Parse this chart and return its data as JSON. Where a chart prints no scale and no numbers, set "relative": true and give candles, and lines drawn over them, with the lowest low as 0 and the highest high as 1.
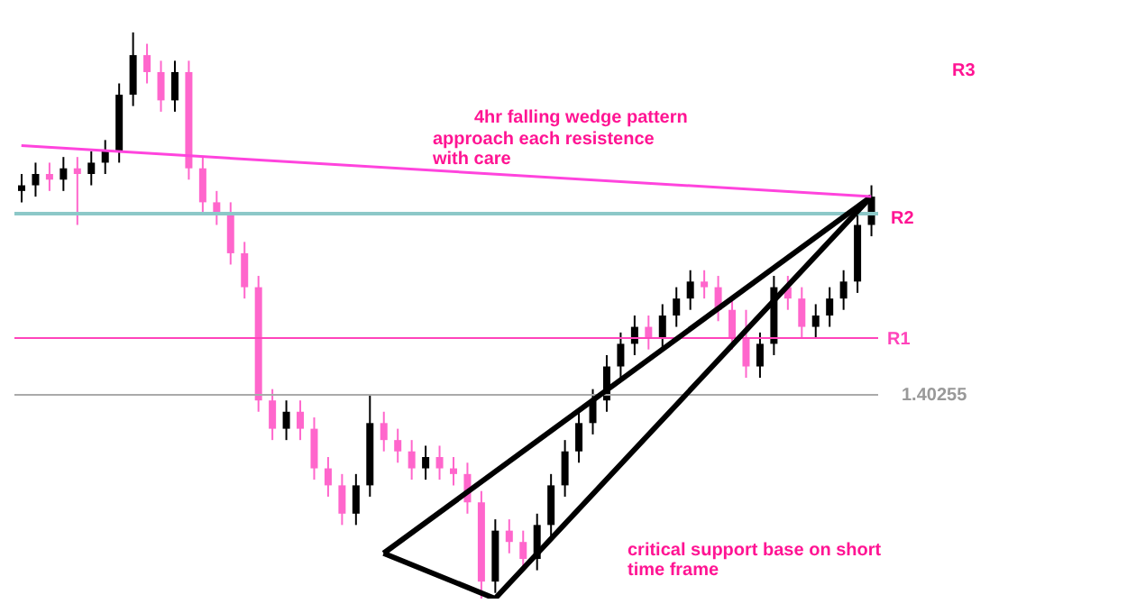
{
  "chart_data": {
    "type": "candlestick",
    "relative": true,
    "categories": [
      null,
      null,
      null,
      null,
      null,
      null,
      null,
      null,
      null,
      null,
      null,
      null,
      null,
      null,
      null,
      null,
      null,
      null,
      null,
      null,
      null,
      null,
      null,
      null,
      null,
      null,
      null,
      null,
      null,
      null,
      null,
      null,
      null,
      null,
      null,
      null,
      null,
      null,
      null,
      null,
      null,
      null,
      null,
      null,
      null,
      null,
      null,
      null,
      null,
      null,
      null,
      null,
      null,
      null,
      null,
      null,
      null,
      null,
      null,
      null,
      null,
      null
    ],
    "ohlc": [
      [
        0.72,
        0.75,
        0.7,
        0.73
      ],
      [
        0.73,
        0.77,
        0.71,
        0.75
      ],
      [
        0.75,
        0.77,
        0.72,
        0.74
      ],
      [
        0.74,
        0.78,
        0.72,
        0.76
      ],
      [
        0.76,
        0.78,
        0.66,
        0.75
      ],
      [
        0.75,
        0.79,
        0.73,
        0.77
      ],
      [
        0.77,
        0.81,
        0.75,
        0.79
      ],
      [
        0.79,
        0.91,
        0.77,
        0.89
      ],
      [
        0.89,
        1.0,
        0.87,
        0.96
      ],
      [
        0.96,
        0.98,
        0.91,
        0.93
      ],
      [
        0.93,
        0.95,
        0.86,
        0.88
      ],
      [
        0.88,
        0.95,
        0.86,
        0.93
      ],
      [
        0.93,
        0.95,
        0.74,
        0.76
      ],
      [
        0.76,
        0.78,
        0.68,
        0.7
      ],
      [
        0.7,
        0.72,
        0.66,
        0.68
      ],
      [
        0.68,
        0.7,
        0.59,
        0.61
      ],
      [
        0.61,
        0.63,
        0.53,
        0.55
      ],
      [
        0.55,
        0.57,
        0.33,
        0.35
      ],
      [
        0.35,
        0.37,
        0.28,
        0.3
      ],
      [
        0.3,
        0.35,
        0.28,
        0.33
      ],
      [
        0.33,
        0.35,
        0.28,
        0.3
      ],
      [
        0.3,
        0.32,
        0.21,
        0.23
      ],
      [
        0.23,
        0.25,
        0.18,
        0.2
      ],
      [
        0.2,
        0.22,
        0.13,
        0.15
      ],
      [
        0.15,
        0.22,
        0.13,
        0.2
      ],
      [
        0.2,
        0.36,
        0.18,
        0.31
      ],
      [
        0.31,
        0.33,
        0.26,
        0.28
      ],
      [
        0.28,
        0.3,
        0.24,
        0.26
      ],
      [
        0.26,
        0.28,
        0.21,
        0.23
      ],
      [
        0.23,
        0.27,
        0.21,
        0.25
      ],
      [
        0.25,
        0.27,
        0.21,
        0.23
      ],
      [
        0.23,
        0.25,
        0.2,
        0.22
      ],
      [
        0.22,
        0.24,
        0.15,
        0.17
      ],
      [
        0.17,
        0.19,
        0.0,
        0.03
      ],
      [
        0.03,
        0.14,
        0.01,
        0.12
      ],
      [
        0.12,
        0.14,
        0.08,
        0.1
      ],
      [
        0.1,
        0.12,
        0.05,
        0.07
      ],
      [
        0.07,
        0.15,
        0.05,
        0.13
      ],
      [
        0.13,
        0.22,
        0.11,
        0.2
      ],
      [
        0.2,
        0.28,
        0.18,
        0.26
      ],
      [
        0.26,
        0.33,
        0.24,
        0.31
      ],
      [
        0.31,
        0.37,
        0.29,
        0.35
      ],
      [
        0.35,
        0.43,
        0.33,
        0.41
      ],
      [
        0.41,
        0.47,
        0.39,
        0.45
      ],
      [
        0.45,
        0.5,
        0.43,
        0.48
      ],
      [
        0.48,
        0.5,
        0.44,
        0.46
      ],
      [
        0.46,
        0.52,
        0.44,
        0.5
      ],
      [
        0.5,
        0.55,
        0.48,
        0.53
      ],
      [
        0.53,
        0.58,
        0.51,
        0.56
      ],
      [
        0.56,
        0.58,
        0.53,
        0.55
      ],
      [
        0.55,
        0.57,
        0.49,
        0.51
      ],
      [
        0.51,
        0.53,
        0.44,
        0.46
      ],
      [
        0.46,
        0.51,
        0.39,
        0.41
      ],
      [
        0.41,
        0.47,
        0.39,
        0.45
      ],
      [
        0.45,
        0.57,
        0.43,
        0.55
      ],
      [
        0.55,
        0.57,
        0.51,
        0.53
      ],
      [
        0.53,
        0.55,
        0.46,
        0.48
      ],
      [
        0.48,
        0.52,
        0.46,
        0.5
      ],
      [
        0.5,
        0.55,
        0.48,
        0.53
      ],
      [
        0.53,
        0.58,
        0.51,
        0.56
      ],
      [
        0.56,
        0.68,
        0.54,
        0.66
      ],
      [
        0.66,
        0.73,
        0.64,
        0.71
      ]
    ],
    "colors": [
      "#000000",
      "#000000",
      "#ff66cc",
      "#000000",
      "#ff66cc",
      "#000000",
      "#000000",
      "#000000",
      "#000000",
      "#ff66cc",
      "#ff66cc",
      "#000000",
      "#ff66cc",
      "#ff66cc",
      "#ff66cc",
      "#ff66cc",
      "#ff66cc",
      "#ff66cc",
      "#ff66cc",
      "#000000",
      "#ff66cc",
      "#ff66cc",
      "#ff66cc",
      "#ff66cc",
      "#000000",
      "#000000",
      "#ff66cc",
      "#ff66cc",
      "#ff66cc",
      "#000000",
      "#ff66cc",
      "#ff66cc",
      "#ff66cc",
      "#ff66cc",
      "#000000",
      "#ff66cc",
      "#ff66cc",
      "#000000",
      "#000000",
      "#000000",
      "#000000",
      "#000000",
      "#000000",
      "#000000",
      "#000000",
      "#ff66cc",
      "#000000",
      "#000000",
      "#000000",
      "#ff66cc",
      "#ff66cc",
      "#ff66cc",
      "#ff66cc",
      "#000000",
      "#000000",
      "#ff66cc",
      "#ff66cc",
      "#000000",
      "#000000",
      "#000000",
      "#000000",
      "#000000"
    ],
    "series": [
      {
        "type": "line",
        "color": "#000000",
        "values": [
          null,
          null,
          null,
          null,
          null,
          null,
          null,
          null,
          null,
          null,
          null,
          null,
          null,
          null,
          null,
          null,
          null,
          null,
          null,
          null,
          null,
          null,
          null,
          null,
          null,
          null,
          0.08,
          null,
          null,
          null,
          null,
          null,
          null,
          null,
          null,
          null,
          null,
          null,
          null,
          null,
          null,
          null,
          null,
          null,
          null,
          null,
          null,
          null,
          null,
          null,
          null,
          null,
          null,
          null,
          null,
          null,
          null,
          null,
          null,
          null,
          null,
          0.71
        ]
      },
      {
        "type": "line",
        "color": "#000000",
        "values": [
          null,
          null,
          null,
          null,
          null,
          null,
          null,
          null,
          null,
          null,
          null,
          null,
          null,
          null,
          null,
          null,
          null,
          null,
          null,
          null,
          null,
          null,
          null,
          null,
          null,
          null,
          0.08,
          null,
          null,
          null,
          null,
          null,
          null,
          null,
          0.0,
          null,
          null,
          null,
          null,
          null,
          null,
          null,
          null,
          null,
          null,
          null,
          null,
          null,
          null,
          null,
          null,
          null,
          null,
          null,
          null,
          null,
          null,
          null,
          null,
          null,
          null,
          0.71
        ]
      },
      {
        "type": "line",
        "color": "#ff44dd",
        "values": [
          0.8,
          null,
          null,
          null,
          null,
          null,
          null,
          null,
          null,
          null,
          null,
          null,
          null,
          null,
          null,
          null,
          null,
          null,
          null,
          null,
          null,
          null,
          null,
          null,
          null,
          null,
          null,
          null,
          null,
          null,
          null,
          null,
          null,
          null,
          null,
          null,
          null,
          null,
          null,
          null,
          null,
          null,
          null,
          null,
          null,
          null,
          null,
          null,
          null,
          null,
          null,
          null,
          null,
          null,
          null,
          null,
          null,
          null,
          null,
          null,
          null,
          0.71
        ]
      }
    ],
    "ref_lines": [
      {
        "axis": "y",
        "value": 0.68,
        "color": "#8cc8c8"
      },
      {
        "axis": "y",
        "value": 0.36,
        "color": "#aaaaaa"
      },
      {
        "axis": "y",
        "value": 0.46,
        "label": "R1",
        "color": "#ff44bb"
      }
    ],
    "annotations": [
      "4hr falling wedge pattern",
      "approach each resistence with care",
      "R3",
      "R2",
      "critical support base on short time frame",
      "1.40255"
    ]
  }
}
